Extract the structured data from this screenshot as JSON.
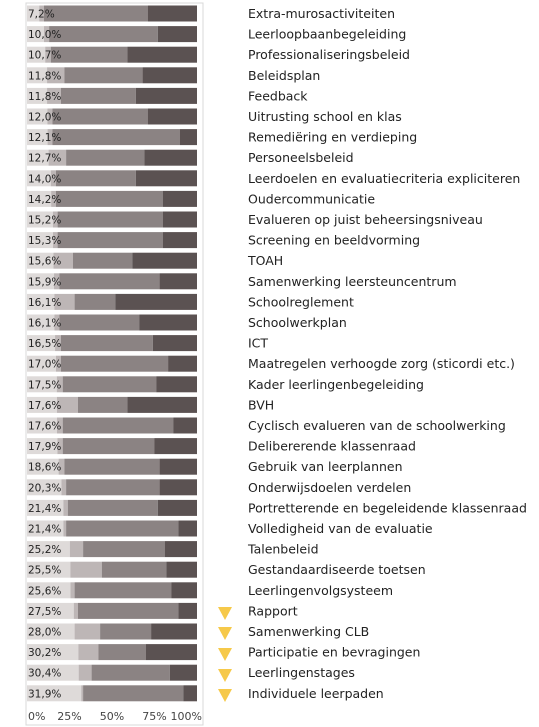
{
  "chart_data": {
    "type": "stacked_bar_horizontal",
    "categories": [
      "Extra-murosactiviteiten",
      "Leerloopbaanbegeleiding",
      "Professionaliseringsbeleid",
      "Beleidsplan",
      "Feedback",
      "Uitrusting school en klas",
      "Remediëring en verdieping",
      "Personeelsbeleid",
      "Leerdoelen en evaluatiecriteria expliciteren",
      "Oudercommunicatie",
      "Evalueren op juist beheersingsniveau",
      "Screening en beeldvorming",
      "TOAH",
      "Samenwerking leersteuncentrum",
      "Schoolreglement",
      "Schoolwerkplan",
      "ICT",
      "Maatregelen verhoogde zorg (sticordi etc.)",
      "Kader leerlingenbegeleiding",
      "BVH",
      "Cyclisch evalueren van de schoolwerking",
      "Delibererende klassenraad",
      "Gebruik van leerplannen",
      "Onderwijsdoelen verdelen",
      "Portretterende en begeleidende klassenraad",
      "Volledigheid van de evaluatie",
      "Talenbeleid",
      "Gestandaardiseerde toetsen",
      "Leerlingenvolgsysteem",
      "Rapport",
      "Samenwerking CLB",
      "Participatie en bevragingen",
      "Leerlingenstages",
      "Individuele leerpaden"
    ],
    "series": [
      {
        "color": "#dedad9",
        "values": [
          7.2,
          10.0,
          10.7,
          11.8,
          11.8,
          12.0,
          12.1,
          12.7,
          14.0,
          14.2,
          15.2,
          15.3,
          15.6,
          15.9,
          16.1,
          16.1,
          16.5,
          17.0,
          17.5,
          17.6,
          17.6,
          17.9,
          18.6,
          20.3,
          21.4,
          21.4,
          25.2,
          25.5,
          25.6,
          27.5,
          28.0,
          30.2,
          30.4,
          31.9
        ],
        "value_labels": [
          "7,2%",
          "10,0%",
          "10,7%",
          "11,8%",
          "11,8%",
          "12,0%",
          "12,1%",
          "12,7%",
          "14,0%",
          "14,2%",
          "15,2%",
          "15,3%",
          "15,6%",
          "15,9%",
          "16,1%",
          "16,1%",
          "16,5%",
          "17,0%",
          "17,5%",
          "17,6%",
          "17,6%",
          "17,9%",
          "18,6%",
          "20,3%",
          "21,4%",
          "21,4%",
          "25,2%",
          "25,5%",
          "25,6%",
          "27,5%",
          "28,0%",
          "30,2%",
          "30,4%",
          "31,9%"
        ]
      },
      {
        "color": "#bdb6b6",
        "values": [
          2.8,
          3,
          3.3,
          10.2,
          8.2,
          3,
          2.9,
          10.3,
          3,
          2.8,
          2.8,
          2.7,
          11.4,
          3.1,
          11.9,
          2.9,
          3.5,
          3,
          3.5,
          12.4,
          3.4,
          3.1,
          3.4,
          2.7,
          2.6,
          1.6,
          7.8,
          18.5,
          2.4,
          2.5,
          15,
          11.8,
          7.6,
          1.1
        ]
      },
      {
        "color": "#8b8383",
        "values": [
          61,
          64,
          45,
          46,
          44,
          56,
          75,
          46,
          47,
          63,
          62,
          62,
          35,
          59,
          24,
          47,
          54,
          63,
          55,
          29,
          65,
          54,
          56,
          55,
          53,
          66,
          48,
          38,
          57,
          59,
          30,
          28,
          46,
          59
        ]
      },
      {
        "color": "#5b5252",
        "values": [
          29,
          23,
          41,
          32,
          36,
          29,
          10,
          31,
          36,
          20,
          20,
          20,
          38,
          22,
          48,
          34,
          26,
          17,
          24,
          41,
          14,
          25,
          22,
          22,
          23,
          11,
          19,
          18,
          15,
          11,
          27,
          30,
          16,
          8
        ]
      }
    ],
    "xlim": [
      0,
      100
    ],
    "xticks": [
      {
        "value": 0,
        "label": "0%"
      },
      {
        "value": 25,
        "label": "25%"
      },
      {
        "value": 50,
        "label": "50%"
      },
      {
        "value": 75,
        "label": "75%"
      },
      {
        "value": 100,
        "label": "100%"
      }
    ]
  }
}
